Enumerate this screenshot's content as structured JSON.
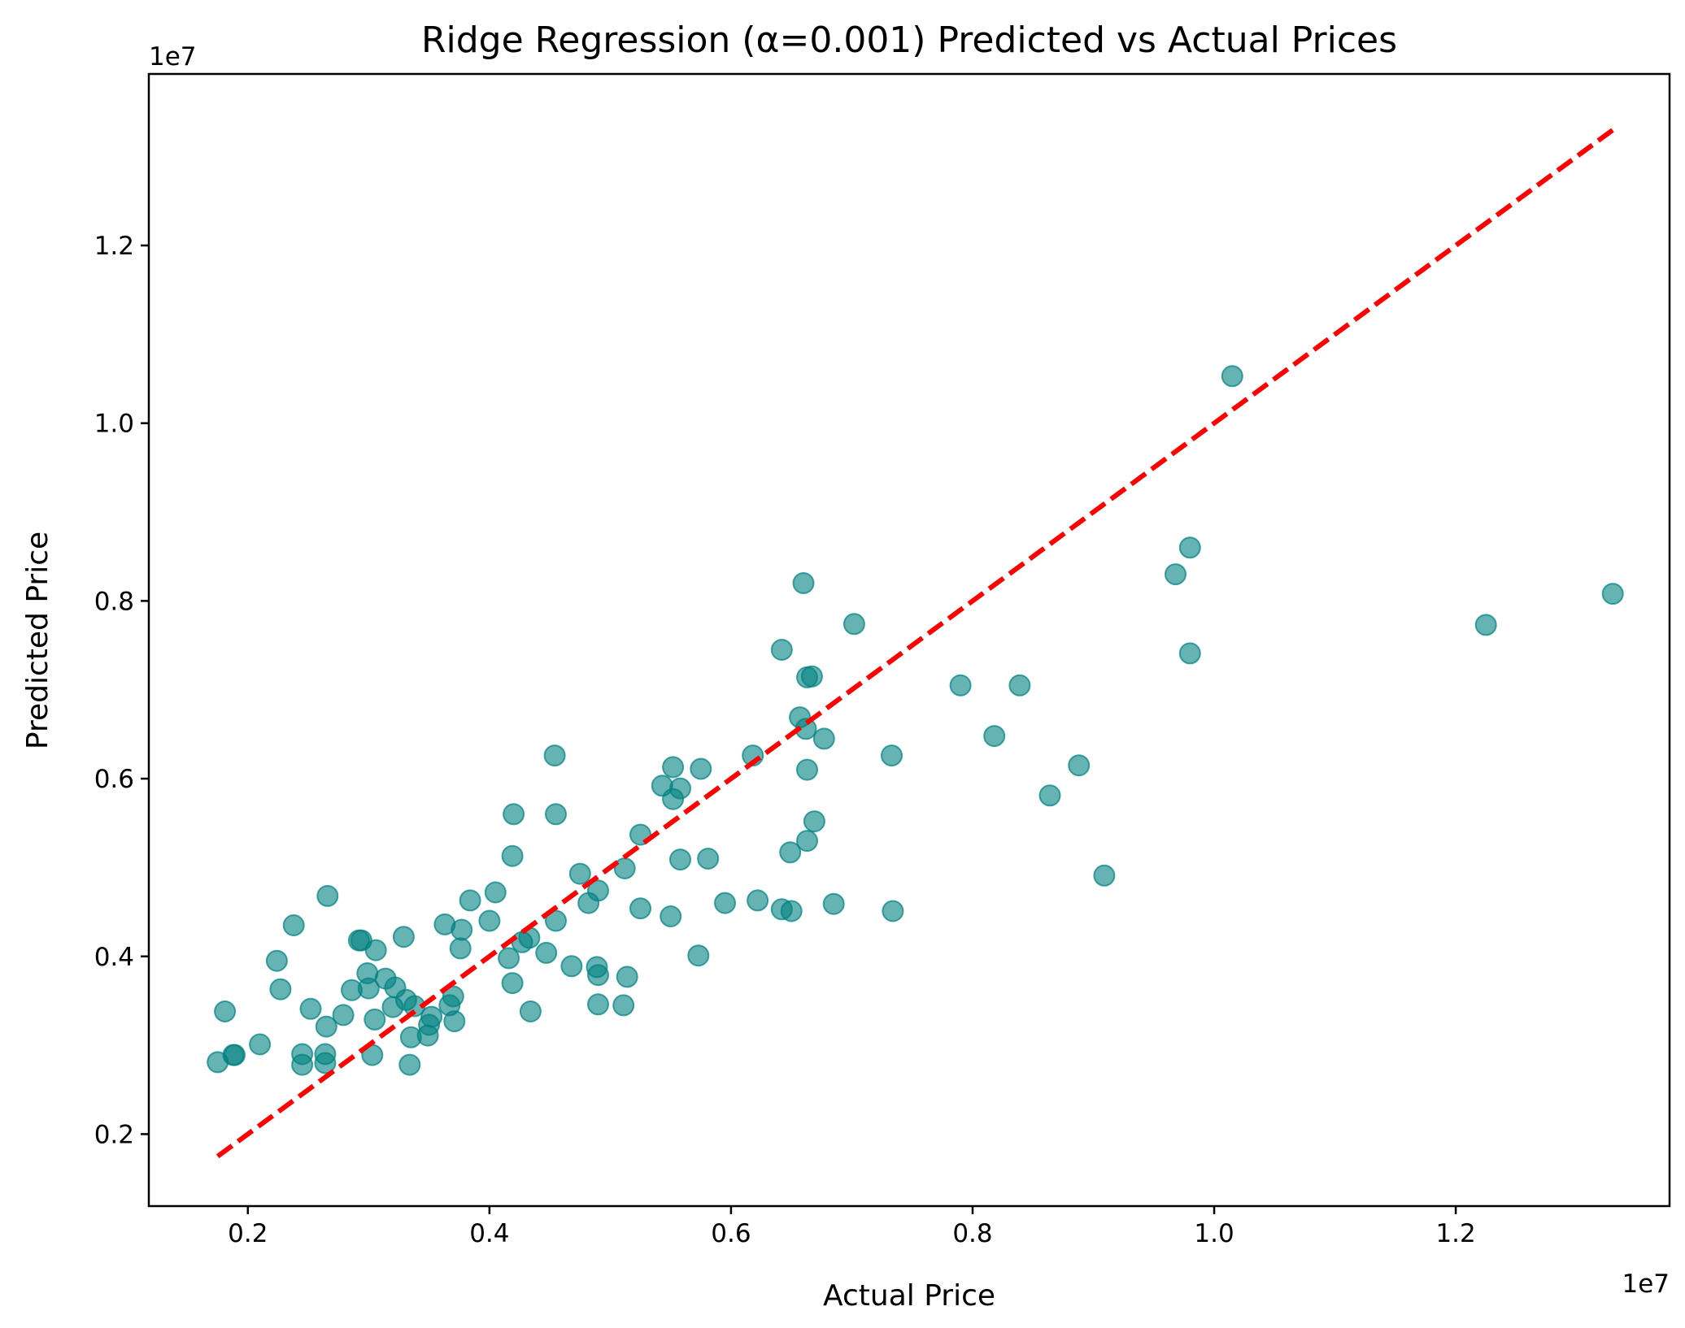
{
  "chart_data": {
    "type": "scatter",
    "title": "Ridge Regression (α=0.001) Predicted vs Actual Prices",
    "xlabel": "Actual Price",
    "ylabel": "Predicted Price",
    "x_offset_label": "1e7",
    "y_offset_label": "1e7",
    "xlim": [
      0.118,
      1.377
    ],
    "ylim": [
      0.119,
      1.393
    ],
    "x_ticks": [
      0.2,
      0.4,
      0.6,
      0.8,
      1.0,
      1.2
    ],
    "x_tick_labels": [
      "0.2",
      "0.4",
      "0.6",
      "0.8",
      "1.0",
      "1.2"
    ],
    "y_ticks": [
      0.2,
      0.4,
      0.6,
      0.8,
      1.0,
      1.2
    ],
    "y_tick_labels": [
      "0.2",
      "0.4",
      "0.6",
      "0.8",
      "1.0",
      "1.2"
    ],
    "grid": false,
    "colors": {
      "points": "#008080",
      "reference_line": "#ff0000"
    },
    "reference_line": {
      "style": "dashed",
      "x": [
        0.175,
        1.33
      ],
      "y": [
        0.175,
        1.33
      ]
    },
    "points": [
      [
        0.175,
        0.281
      ],
      [
        0.181,
        0.338
      ],
      [
        0.188,
        0.289
      ],
      [
        0.189,
        0.289
      ],
      [
        0.21,
        0.301
      ],
      [
        0.224,
        0.395
      ],
      [
        0.227,
        0.363
      ],
      [
        0.238,
        0.435
      ],
      [
        0.245,
        0.29
      ],
      [
        0.245,
        0.278
      ],
      [
        0.252,
        0.341
      ],
      [
        0.264,
        0.29
      ],
      [
        0.264,
        0.28
      ],
      [
        0.265,
        0.321
      ],
      [
        0.266,
        0.468
      ],
      [
        0.279,
        0.334
      ],
      [
        0.286,
        0.362
      ],
      [
        0.292,
        0.418
      ],
      [
        0.294,
        0.418
      ],
      [
        0.299,
        0.381
      ],
      [
        0.3,
        0.364
      ],
      [
        0.303,
        0.289
      ],
      [
        0.305,
        0.329
      ],
      [
        0.306,
        0.407
      ],
      [
        0.314,
        0.375
      ],
      [
        0.32,
        0.343
      ],
      [
        0.322,
        0.365
      ],
      [
        0.329,
        0.422
      ],
      [
        0.331,
        0.351
      ],
      [
        0.334,
        0.278
      ],
      [
        0.335,
        0.309
      ],
      [
        0.338,
        0.344
      ],
      [
        0.349,
        0.311
      ],
      [
        0.35,
        0.323
      ],
      [
        0.352,
        0.332
      ],
      [
        0.363,
        0.436
      ],
      [
        0.367,
        0.345
      ],
      [
        0.37,
        0.355
      ],
      [
        0.371,
        0.327
      ],
      [
        0.376,
        0.409
      ],
      [
        0.377,
        0.43
      ],
      [
        0.384,
        0.463
      ],
      [
        0.4,
        0.44
      ],
      [
        0.405,
        0.472
      ],
      [
        0.416,
        0.398
      ],
      [
        0.419,
        0.37
      ],
      [
        0.419,
        0.513
      ],
      [
        0.42,
        0.56
      ],
      [
        0.427,
        0.416
      ],
      [
        0.433,
        0.421
      ],
      [
        0.434,
        0.338
      ],
      [
        0.447,
        0.404
      ],
      [
        0.454,
        0.626
      ],
      [
        0.455,
        0.44
      ],
      [
        0.455,
        0.56
      ],
      [
        0.468,
        0.389
      ],
      [
        0.475,
        0.493
      ],
      [
        0.482,
        0.46
      ],
      [
        0.489,
        0.388
      ],
      [
        0.49,
        0.379
      ],
      [
        0.49,
        0.346
      ],
      [
        0.49,
        0.474
      ],
      [
        0.511,
        0.345
      ],
      [
        0.512,
        0.499
      ],
      [
        0.514,
        0.377
      ],
      [
        0.525,
        0.537
      ],
      [
        0.525,
        0.454
      ],
      [
        0.543,
        0.592
      ],
      [
        0.55,
        0.445
      ],
      [
        0.552,
        0.613
      ],
      [
        0.552,
        0.577
      ],
      [
        0.558,
        0.509
      ],
      [
        0.558,
        0.589
      ],
      [
        0.573,
        0.401
      ],
      [
        0.575,
        0.611
      ],
      [
        0.581,
        0.51
      ],
      [
        0.595,
        0.46
      ],
      [
        0.618,
        0.626
      ],
      [
        0.622,
        0.463
      ],
      [
        0.642,
        0.745
      ],
      [
        0.642,
        0.453
      ],
      [
        0.649,
        0.517
      ],
      [
        0.65,
        0.451
      ],
      [
        0.657,
        0.669
      ],
      [
        0.66,
        0.82
      ],
      [
        0.662,
        0.656
      ],
      [
        0.663,
        0.714
      ],
      [
        0.663,
        0.61
      ],
      [
        0.663,
        0.53
      ],
      [
        0.667,
        0.715
      ],
      [
        0.669,
        0.552
      ],
      [
        0.677,
        0.645
      ],
      [
        0.685,
        0.459
      ],
      [
        0.702,
        0.774
      ],
      [
        0.733,
        0.626
      ],
      [
        0.734,
        0.451
      ],
      [
        0.79,
        0.705
      ],
      [
        0.818,
        0.648
      ],
      [
        0.839,
        0.705
      ],
      [
        0.864,
        0.581
      ],
      [
        0.888,
        0.615
      ],
      [
        0.909,
        0.491
      ],
      [
        0.968,
        0.83
      ],
      [
        0.98,
        0.86
      ],
      [
        0.98,
        0.741
      ],
      [
        1.015,
        1.053
      ],
      [
        1.225,
        0.773
      ],
      [
        1.33,
        0.808
      ]
    ]
  }
}
